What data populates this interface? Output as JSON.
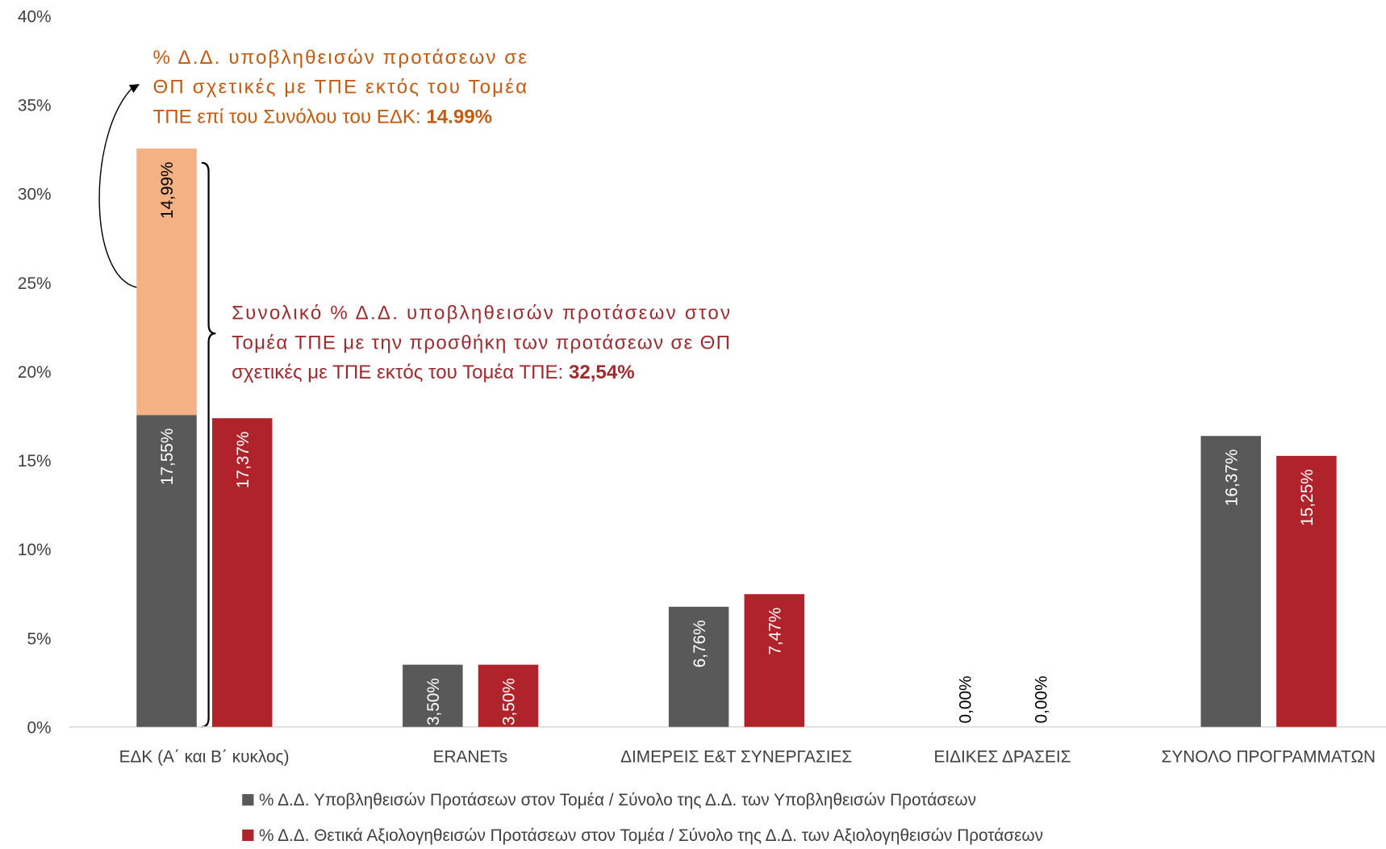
{
  "chart_data": {
    "type": "bar",
    "categories": [
      "ΕΔΚ (Α΄ και Β΄ κυκλος)",
      "ERANETs",
      "ΔΙΜΕΡΕΙΣ Ε&Τ ΣΥΝΕΡΓΑΣΙΕΣ",
      "ΕΙΔΙΚΕΣ ΔΡΑΣΕΙΣ",
      "ΣΥΝΟΛΟ ΠΡΟΓΡΑΜΜΑΤΩΝ"
    ],
    "series": [
      {
        "name": "% Δ.Δ. Υποβληθεισών Προτάσεων στον Τομέα / Σύνολο της Δ.Δ. των Υποβληθεισών Προτάσεων",
        "color": "#595959",
        "label_color": "#ffffff",
        "values": [
          17.55,
          3.5,
          6.76,
          0.0,
          16.37
        ],
        "value_labels": [
          "17,55%",
          "3,50%",
          "6,76%",
          "0,00%",
          "16,37%"
        ]
      },
      {
        "color": "#f4b183",
        "label_color": "#000000",
        "stacked": true,
        "values": [
          14.99,
          null,
          null,
          null,
          null
        ],
        "value_labels": [
          "14,99%",
          null,
          null,
          null,
          null
        ]
      },
      {
        "name": "% Δ.Δ. Θετικά Αξιολογηθεισών Προτάσεων στον Τομέα / Σύνολο της Δ.Δ. των Αξιολογηθεισών Προτάσεων",
        "color": "#b0232a",
        "label_color": "#ffffff",
        "values": [
          17.37,
          3.5,
          7.47,
          0.0,
          15.25
        ],
        "value_labels": [
          "17,37%",
          "3,50%",
          "7,47%",
          "0,00%",
          "15,25%"
        ]
      }
    ],
    "ylim": [
      0,
      40
    ],
    "yticks": [
      {
        "value": 0,
        "label": "0%"
      },
      {
        "value": 5,
        "label": "5%"
      },
      {
        "value": 10,
        "label": "10%"
      },
      {
        "value": 15,
        "label": "15%"
      },
      {
        "value": 20,
        "label": "20%"
      },
      {
        "value": 25,
        "label": "25%"
      },
      {
        "value": 30,
        "label": "30%"
      },
      {
        "value": 35,
        "label": "35%"
      },
      {
        "value": 40,
        "label": "40%"
      }
    ],
    "grid": false,
    "legend": "bottom",
    "annotations": [
      {
        "color": "#c55a11",
        "lines": [
          "% Δ.Δ. υποβληθεισών προτάσεων σε",
          "ΘΠ σχετικές με ΤΠΕ εκτός του Τομέα",
          "ΤΠΕ επί του Συνόλου του ΕΔΚ: "
        ],
        "bold": "14.99%"
      },
      {
        "color": "#9e2b2f",
        "lines": [
          "Συνολικό % Δ.Δ. υποβληθεισών προτάσεων στον",
          "Τομέα ΤΠΕ με την προσθήκη των προτάσεων σε ΘΠ",
          "σχετικές με ΤΠΕ εκτός του Τομέα ΤΠΕ: "
        ],
        "bold": "32,54%"
      }
    ]
  }
}
